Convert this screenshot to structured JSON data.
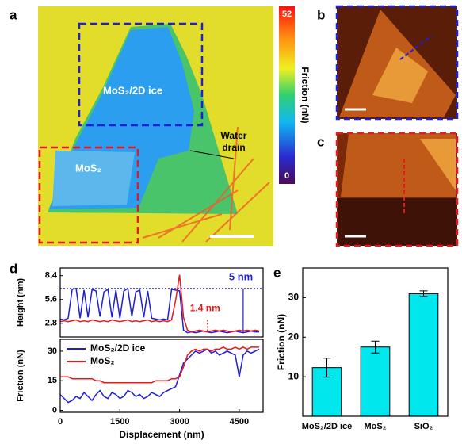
{
  "panels": [
    "a",
    "b",
    "c",
    "d",
    "e"
  ],
  "panel_a": {
    "labels": [
      "MoS₂/2D ice",
      "MoS₂"
    ],
    "water_drain": [
      "Water",
      "drain"
    ],
    "colorbar": {
      "label": "Friction (nN)",
      "clim": [
        0,
        52
      ],
      "ticks": [
        52,
        0
      ]
    }
  },
  "chart_data": [
    {
      "type": "line",
      "ylabel": "Height (nm)",
      "xlim": [
        0,
        5100
      ],
      "ylim": [
        1.2,
        9.3
      ],
      "yticks": [
        2.8,
        5.6,
        8.4
      ],
      "reference_line": 6.9,
      "annotations": [
        {
          "text": "5 nm",
          "color": "#1f1fd6"
        },
        {
          "text": "1.4 nm",
          "color": "#e8191c"
        }
      ],
      "x": [
        0,
        100,
        200,
        300,
        400,
        500,
        600,
        700,
        800,
        900,
        1000,
        1100,
        1200,
        1300,
        1400,
        1500,
        1600,
        1700,
        1800,
        1900,
        2000,
        2100,
        2200,
        2300,
        2400,
        2500,
        2600,
        2700,
        2800,
        2900,
        3000,
        3100,
        3200,
        3300,
        3400,
        3500,
        3600,
        3700,
        3800,
        3900,
        4000,
        4100,
        4200,
        4300,
        4400,
        4500,
        4600,
        4700,
        4800,
        4900,
        5000
      ],
      "series": [
        {
          "name": "MoS₂/2D ice",
          "color": "#1f1fd6",
          "values": [
            3.3,
            3.2,
            3.4,
            6.8,
            6.9,
            3.4,
            6.7,
            3.5,
            6.8,
            6.6,
            3.6,
            6.5,
            6.8,
            3.5,
            6.7,
            3.4,
            6.6,
            6.9,
            3.6,
            6.5,
            6.7,
            3.5,
            6.6,
            3.4,
            3.3,
            3.2,
            3.3,
            3.2,
            6.8,
            6.7,
            6.6,
            2.0,
            1.7,
            1.8,
            1.7,
            1.8,
            1.9,
            1.8,
            1.7,
            1.8,
            1.9,
            1.8,
            1.7,
            1.8,
            1.9,
            1.8,
            1.7,
            1.8,
            1.9,
            1.8,
            1.8
          ]
        },
        {
          "name": "MoS₂",
          "color": "#e8191c",
          "values": [
            3.0,
            3.1,
            3.0,
            3.1,
            3.2,
            3.0,
            3.1,
            3.0,
            3.2,
            3.1,
            3.0,
            3.1,
            3.0,
            3.2,
            3.1,
            3.0,
            3.1,
            3.2,
            3.0,
            3.1,
            3.0,
            3.1,
            3.2,
            3.0,
            3.1,
            3.0,
            3.1,
            3.0,
            3.2,
            5.5,
            8.5,
            3.5,
            2.0,
            1.8,
            1.9,
            2.0,
            1.9,
            1.8,
            1.9,
            2.0,
            1.9,
            2.0,
            1.9,
            1.8,
            1.9,
            2.0,
            1.9,
            2.0,
            1.9,
            2.0,
            1.9
          ]
        }
      ]
    },
    {
      "type": "line",
      "ylabel": "Friction (nN)",
      "xlabel": "Displacement (nm)",
      "xlim": [
        0,
        5100
      ],
      "ylim": [
        -1,
        36
      ],
      "xticks": [
        0,
        1500,
        3000,
        4500
      ],
      "yticks": [
        0,
        15,
        30
      ],
      "legend": "upper left",
      "x": [
        0,
        100,
        200,
        300,
        400,
        500,
        600,
        700,
        800,
        900,
        1000,
        1100,
        1200,
        1300,
        1400,
        1500,
        1600,
        1700,
        1800,
        1900,
        2000,
        2100,
        2200,
        2300,
        2400,
        2500,
        2600,
        2700,
        2800,
        2900,
        3000,
        3100,
        3200,
        3300,
        3400,
        3500,
        3600,
        3700,
        3800,
        3900,
        4000,
        4100,
        4200,
        4300,
        4400,
        4500,
        4600,
        4700,
        4800,
        4900,
        5000
      ],
      "series": [
        {
          "name": "MoS₂/2D ice",
          "color": "#1f1fd6",
          "values": [
            8,
            6,
            4,
            5,
            7,
            6,
            9,
            7,
            5,
            8,
            10,
            7,
            6,
            9,
            8,
            6,
            7,
            10,
            9,
            7,
            8,
            6,
            7,
            9,
            8,
            7,
            9,
            10,
            11,
            12,
            18,
            24,
            26,
            28,
            30,
            29,
            30,
            31,
            29,
            30,
            28,
            29,
            30,
            29,
            28,
            17,
            28,
            30,
            29,
            30,
            31
          ]
        },
        {
          "name": "MoS₂",
          "color": "#e8191c",
          "values": [
            17,
            17,
            17,
            16,
            16,
            16,
            16,
            16,
            16,
            15,
            15,
            14,
            14,
            14,
            14,
            14,
            14,
            14,
            14,
            14,
            14,
            14,
            14,
            14,
            15,
            15,
            15,
            15,
            16,
            16,
            17,
            22,
            28,
            30,
            31,
            30,
            31,
            31,
            30,
            31,
            31,
            32,
            31,
            31,
            32,
            31,
            32,
            31,
            32,
            32,
            32
          ]
        }
      ]
    },
    {
      "type": "bar",
      "ylabel": "Friction (nN)",
      "categories": [
        "MoS₂/2D ice",
        "MoS₂",
        "SiO₂"
      ],
      "values": [
        12.3,
        17.5,
        31.0
      ],
      "errors": [
        2.4,
        1.5,
        0.7
      ],
      "color": "#00e8ee",
      "ylim": [
        0,
        37.5
      ],
      "yticks": [
        10,
        20,
        30
      ]
    }
  ]
}
